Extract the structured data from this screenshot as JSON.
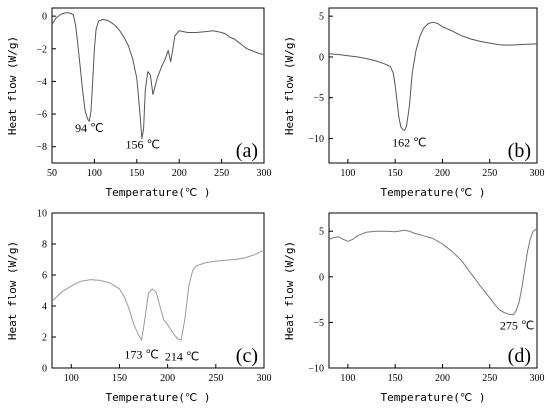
{
  "chart_data": [
    {
      "panel_label": "(a)",
      "type": "line",
      "xlabel": "Temperature(℃ )",
      "ylabel": "Heat flow (W/g)",
      "xlim": [
        50,
        300
      ],
      "ylim": [
        -9,
        0.5
      ],
      "xticks": [
        50,
        100,
        150,
        200,
        250,
        300
      ],
      "yticks": [
        0,
        -2,
        -4,
        -6,
        -8
      ],
      "legend": "none",
      "grid": false,
      "line_color": "#555555",
      "series": [
        {
          "x": [
            50,
            55,
            60,
            65,
            70,
            75,
            78,
            80,
            83,
            86,
            89,
            92,
            94,
            96,
            98,
            100,
            102,
            105,
            110,
            115,
            120,
            125,
            130,
            135,
            140,
            145,
            150,
            153,
            156,
            158,
            160,
            163,
            166,
            169,
            172,
            174,
            177,
            180,
            183,
            187,
            190,
            195,
            200,
            210,
            220,
            230,
            240,
            250,
            255,
            260,
            265,
            270,
            275,
            280,
            285,
            290,
            295,
            300
          ],
          "y": [
            -0.5,
            -0.1,
            0.1,
            0.2,
            0.2,
            0.1,
            -0.6,
            -1.5,
            -3.0,
            -4.5,
            -5.8,
            -6.3,
            -6.45,
            -5.8,
            -4.0,
            -2.0,
            -0.8,
            -0.3,
            -0.2,
            -0.25,
            -0.4,
            -0.6,
            -0.9,
            -1.3,
            -1.8,
            -2.6,
            -3.8,
            -5.5,
            -7.5,
            -6.9,
            -4.5,
            -3.4,
            -3.6,
            -4.8,
            -4.2,
            -3.8,
            -3.4,
            -3.0,
            -2.7,
            -2.1,
            -2.8,
            -1.2,
            -0.9,
            -1.0,
            -1.0,
            -0.95,
            -0.9,
            -1.0,
            -1.1,
            -1.3,
            -1.4,
            -1.6,
            -1.8,
            -2.0,
            -2.1,
            -2.2,
            -2.3,
            -2.35
          ]
        }
      ],
      "annotations": [
        {
          "text": "94 ℃",
          "x": 94,
          "y": -7.1
        },
        {
          "text": "156 ℃",
          "x": 157,
          "y": -8.1
        }
      ]
    },
    {
      "panel_label": "(b)",
      "type": "line",
      "xlabel": "Temperature(℃  )",
      "ylabel": "Heat flow (W/g)",
      "xlim": [
        80,
        300
      ],
      "ylim": [
        -13,
        6
      ],
      "xticks": [
        100,
        150,
        200,
        250,
        300
      ],
      "yticks": [
        5,
        0,
        -5,
        -10
      ],
      "legend": "none",
      "grid": false,
      "line_color": "#555555",
      "series": [
        {
          "x": [
            80,
            90,
            100,
            110,
            120,
            130,
            140,
            145,
            148,
            150,
            152,
            154,
            156,
            158,
            160,
            162,
            165,
            168,
            172,
            176,
            180,
            185,
            190,
            195,
            200,
            210,
            220,
            230,
            240,
            250,
            260,
            270,
            280,
            290,
            300
          ],
          "y": [
            0.4,
            0.3,
            0.15,
            0.0,
            -0.2,
            -0.5,
            -0.9,
            -1.2,
            -2.0,
            -3.5,
            -5.5,
            -7.5,
            -8.6,
            -8.9,
            -9.0,
            -8.5,
            -6.0,
            -2.0,
            0.8,
            2.5,
            3.5,
            4.1,
            4.25,
            4.1,
            3.7,
            3.2,
            2.6,
            2.2,
            1.9,
            1.7,
            1.5,
            1.45,
            1.5,
            1.55,
            1.6
          ]
        }
      ],
      "annotations": [
        {
          "text": "162 ℃",
          "x": 165,
          "y": -11
        }
      ]
    },
    {
      "panel_label": "(c)",
      "type": "line",
      "xlabel": "Temperature(℃  )",
      "ylabel": "Heat flow (W/g)",
      "xlim": [
        80,
        300
      ],
      "ylim": [
        0,
        10
      ],
      "xticks": [
        100,
        150,
        200,
        250,
        300
      ],
      "yticks": [
        0,
        2,
        4,
        6,
        8,
        10
      ],
      "legend": "none",
      "grid": false,
      "line_color": "#999999",
      "series": [
        {
          "x": [
            80,
            90,
            100,
            110,
            120,
            130,
            140,
            150,
            155,
            160,
            165,
            170,
            173,
            176,
            180,
            184,
            188,
            192,
            196,
            200,
            205,
            210,
            214,
            218,
            222,
            226,
            230,
            240,
            250,
            260,
            270,
            280,
            290,
            300
          ],
          "y": [
            4.3,
            4.9,
            5.3,
            5.6,
            5.7,
            5.65,
            5.5,
            5.1,
            4.6,
            3.8,
            2.8,
            2.1,
            1.8,
            3.0,
            4.8,
            5.1,
            4.9,
            4.0,
            3.1,
            2.8,
            2.3,
            1.9,
            1.8,
            3.2,
            5.3,
            6.3,
            6.6,
            6.8,
            6.9,
            6.95,
            7.0,
            7.1,
            7.3,
            7.6
          ]
        }
      ],
      "annotations": [
        {
          "text": "173 ℃",
          "x": 173,
          "y": 0.6
        },
        {
          "text": "214 ℃",
          "x": 215,
          "y": 0.5
        }
      ]
    },
    {
      "panel_label": "(d)",
      "type": "line",
      "xlabel": "Temperature(℃  )",
      "ylabel": "Heat flow (W/g)",
      "xlim": [
        80,
        300
      ],
      "ylim": [
        -10,
        7
      ],
      "xticks": [
        100,
        150,
        200,
        250,
        300
      ],
      "yticks": [
        5,
        0,
        -5,
        -10
      ],
      "legend": "none",
      "grid": false,
      "line_color": "#777777",
      "series": [
        {
          "x": [
            80,
            85,
            90,
            95,
            100,
            105,
            110,
            120,
            130,
            140,
            150,
            160,
            165,
            170,
            180,
            190,
            200,
            210,
            220,
            230,
            240,
            250,
            255,
            260,
            265,
            270,
            275,
            278,
            281,
            284,
            287,
            290,
            293,
            296,
            300
          ],
          "y": [
            4.1,
            4.3,
            4.4,
            4.1,
            3.9,
            4.1,
            4.5,
            4.9,
            5.0,
            5.0,
            4.95,
            5.1,
            5.0,
            4.8,
            4.5,
            4.2,
            3.6,
            2.8,
            1.8,
            0.4,
            -1.0,
            -2.3,
            -3.0,
            -3.6,
            -3.9,
            -4.1,
            -4.15,
            -3.7,
            -2.8,
            -1.2,
            0.8,
            2.8,
            4.2,
            5.0,
            5.3
          ]
        }
      ],
      "annotations": [
        {
          "text": "275 ℃",
          "x": 279,
          "y": -5.8
        }
      ]
    }
  ]
}
